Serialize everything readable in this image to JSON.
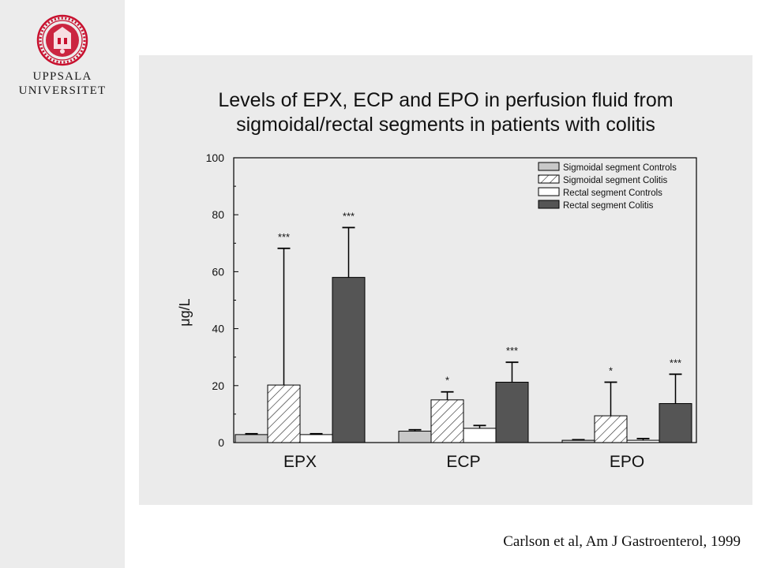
{
  "institution": {
    "name_line1": "UPPSALA",
    "name_line2": "UNIVERSITET",
    "logo_icon": "uppsala-seal-icon",
    "logo_color": "#c8102e"
  },
  "chart_data": {
    "type": "bar",
    "title_line1": "Levels of EPX, ECP and EPO in perfusion fluid from",
    "title_line2": "sigmoidal/rectal segments in patients with colitis",
    "ylabel": "μg/L",
    "xlabel": "",
    "ylim": [
      0,
      100
    ],
    "yticks": [
      0,
      20,
      40,
      60,
      80,
      100
    ],
    "categories": [
      "EPX",
      "ECP",
      "EPO"
    ],
    "legend_position": "top-right",
    "grid": false,
    "series": [
      {
        "name": "Sigmoidal segment Controls",
        "fill": "#c8c8c8",
        "pattern": "solid",
        "values": [
          2.8,
          4.0,
          0.8
        ],
        "errors": [
          0.3,
          0.5,
          0.2
        ],
        "significance": [
          "",
          "",
          ""
        ]
      },
      {
        "name": "Sigmoidal segment Colitis",
        "fill": "#ffffff",
        "pattern": "hatch",
        "values": [
          20.2,
          15.0,
          9.4
        ],
        "errors": [
          48.0,
          2.8,
          11.8
        ],
        "significance": [
          "***",
          "*",
          "*"
        ]
      },
      {
        "name": "Rectal segment Controls",
        "fill": "#ffffff",
        "pattern": "solid",
        "values": [
          2.8,
          5.0,
          0.8
        ],
        "errors": [
          0.3,
          1.0,
          0.6
        ],
        "significance": [
          "",
          "",
          ""
        ]
      },
      {
        "name": "Rectal segment Colitis",
        "fill": "#555555",
        "pattern": "solid",
        "values": [
          58.0,
          21.2,
          13.7
        ],
        "errors": [
          17.5,
          7.0,
          10.3
        ],
        "significance": [
          "***",
          "***",
          "***"
        ]
      }
    ]
  },
  "citation": "Carlson et al, Am J Gastroenterol, 1999"
}
